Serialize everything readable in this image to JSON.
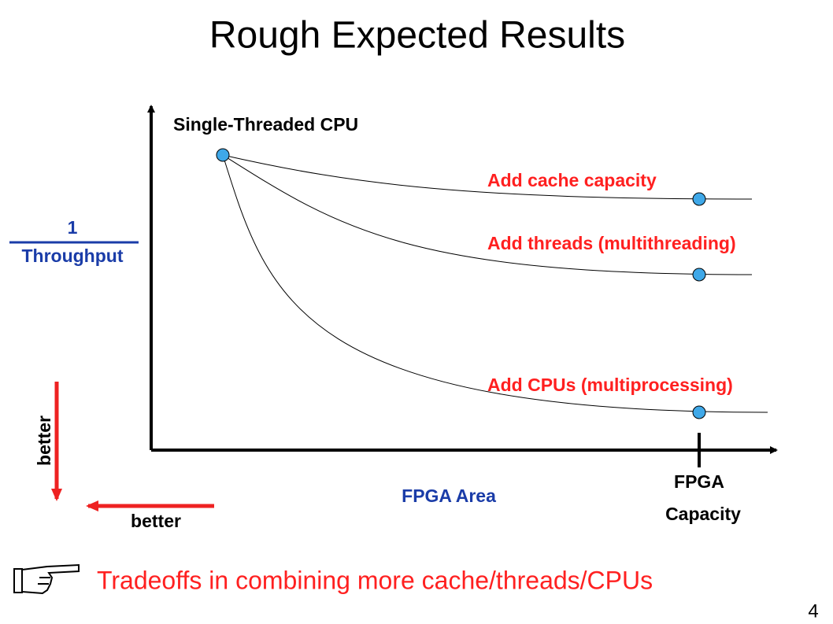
{
  "title": "Rough Expected Results",
  "start_point": {
    "label": "Single-Threaded CPU"
  },
  "curves": [
    {
      "label": "Add cache capacity"
    },
    {
      "label": "Add threads (multithreading)"
    },
    {
      "label": "Add CPUs (multiprocessing)"
    }
  ],
  "y_axis": {
    "numerator": "1",
    "denominator": "Throughput",
    "better": "better"
  },
  "x_axis": {
    "label": "FPGA Area",
    "better": "better",
    "marker": [
      "FPGA",
      "Capacity"
    ]
  },
  "footer": {
    "text": "Tradeoffs in combining more cache/threads/CPUs"
  },
  "page_number": "4"
}
